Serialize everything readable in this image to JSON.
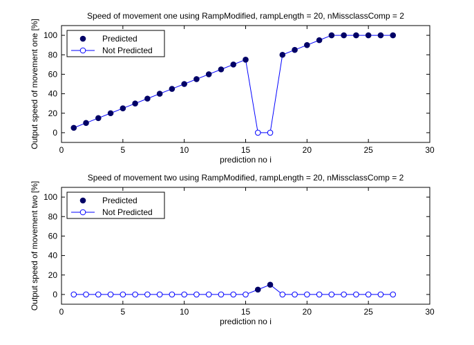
{
  "colors": {
    "line": "#0000FF",
    "predicted_marker": "#000066",
    "not_predicted_marker_edge": "#000080",
    "axes": "#000000",
    "background": "#FFFFFF"
  },
  "chart_data": [
    {
      "type": "line",
      "title": "Speed of movement one using RampModified, rampLength = 20, nMissclassComp = 2",
      "xlabel": "prediction no i",
      "ylabel": "Output speed of movement one [%]",
      "xlim": [
        0,
        30
      ],
      "ylim": [
        -10,
        110
      ],
      "xticks": [
        0,
        5,
        10,
        15,
        20,
        25,
        30
      ],
      "yticks": [
        0,
        20,
        40,
        60,
        80,
        100
      ],
      "grid": false,
      "legend": {
        "location": "top-left",
        "entries": [
          "Predicted",
          "Not Predicted"
        ]
      },
      "x": [
        1,
        2,
        3,
        4,
        5,
        6,
        7,
        8,
        9,
        10,
        11,
        12,
        13,
        14,
        15,
        16,
        17,
        18,
        19,
        20,
        21,
        22,
        23,
        24,
        25,
        26,
        27
      ],
      "values": [
        5,
        10,
        15,
        20,
        25,
        30,
        35,
        40,
        45,
        50,
        55,
        60,
        65,
        70,
        75,
        0,
        0,
        80,
        85,
        90,
        95,
        100,
        100,
        100,
        100,
        100,
        100
      ],
      "predicted": [
        true,
        true,
        true,
        true,
        true,
        true,
        true,
        true,
        true,
        true,
        true,
        true,
        true,
        true,
        true,
        false,
        false,
        true,
        true,
        true,
        true,
        true,
        true,
        true,
        true,
        true,
        true
      ]
    },
    {
      "type": "line",
      "title": "Speed of movement two using RampModified, rampLength = 20, nMissclassComp = 2",
      "xlabel": "prediction no i",
      "ylabel": "Output speed of movement two [%]",
      "xlim": [
        0,
        30
      ],
      "ylim": [
        -10,
        110
      ],
      "xticks": [
        0,
        5,
        10,
        15,
        20,
        25,
        30
      ],
      "yticks": [
        0,
        20,
        40,
        60,
        80,
        100
      ],
      "grid": false,
      "legend": {
        "location": "top-left",
        "entries": [
          "Predicted",
          "Not Predicted"
        ]
      },
      "x": [
        1,
        2,
        3,
        4,
        5,
        6,
        7,
        8,
        9,
        10,
        11,
        12,
        13,
        14,
        15,
        16,
        17,
        18,
        19,
        20,
        21,
        22,
        23,
        24,
        25,
        26,
        27
      ],
      "values": [
        0,
        0,
        0,
        0,
        0,
        0,
        0,
        0,
        0,
        0,
        0,
        0,
        0,
        0,
        0,
        5,
        10,
        0,
        0,
        0,
        0,
        0,
        0,
        0,
        0,
        0,
        0
      ],
      "predicted": [
        false,
        false,
        false,
        false,
        false,
        false,
        false,
        false,
        false,
        false,
        false,
        false,
        false,
        false,
        false,
        true,
        true,
        false,
        false,
        false,
        false,
        false,
        false,
        false,
        false,
        false,
        false
      ]
    }
  ]
}
